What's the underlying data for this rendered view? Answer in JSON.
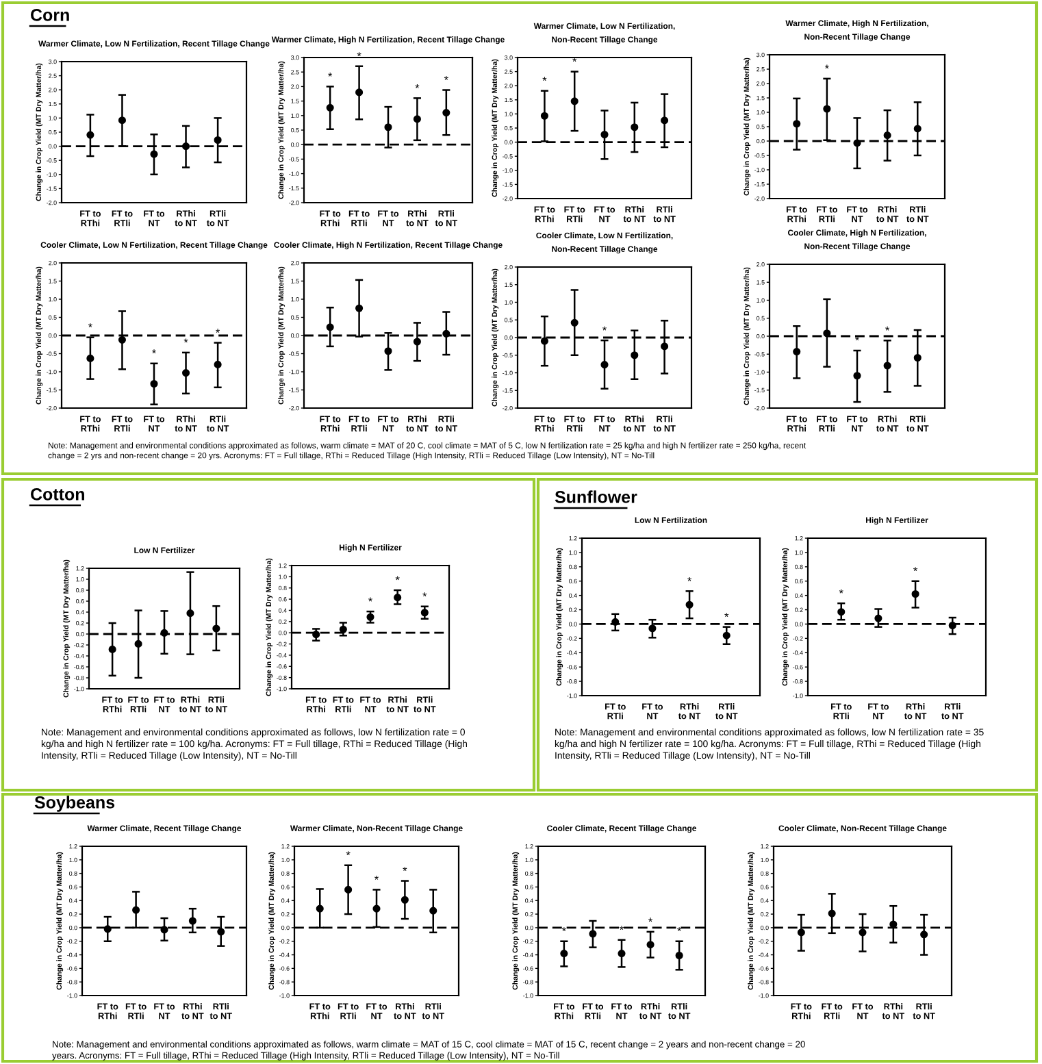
{
  "chart_data": [
    {
      "type": "scatter",
      "title": "Warmer Climate, Low N Fertilization, Recent Tillage Change",
      "ylabel": "Change in Crop Yield (MT Dry Matter/ha)",
      "categories": [
        "FT to\nRThi",
        "FT to\nRTli",
        "FT to\nNT",
        "RThi\nto NT",
        "RTli\nto NT"
      ],
      "ylim": [
        -2.0,
        3.0
      ],
      "yticks": [
        {
          "value": -2,
          "label": "-2.0"
        },
        {
          "value": -1.5,
          "label": "-1.5"
        },
        {
          "value": -1,
          "label": "-1.0"
        },
        {
          "value": -0.5,
          "label": "-0.5"
        },
        {
          "value": 0,
          "label": "0.0"
        },
        {
          "value": 0.5,
          "label": "0.5"
        },
        {
          "value": 1,
          "label": "1.0"
        },
        {
          "value": 1.5,
          "label": "1.5"
        },
        {
          "value": 2,
          "label": "2.0"
        },
        {
          "value": 2.5,
          "label": "2.5"
        },
        {
          "value": 3,
          "label": "3.0"
        }
      ],
      "marker": "circle",
      "grid": false,
      "ref_lines": [
        {
          "axis": "y",
          "value": 0,
          "line_style": "dashed"
        }
      ],
      "series": [
        {
          "color": "#000000",
          "values": [
            0.4,
            0.92,
            -0.28,
            0.0,
            0.22
          ],
          "errors": [
            [
              -0.35,
              1.12
            ],
            [
              0.0,
              1.82
            ],
            [
              -1.0,
              0.42
            ],
            [
              -0.75,
              0.72
            ],
            [
              -0.57,
              1.0
            ]
          ]
        }
      ],
      "annotations": [
        "Corn",
        "Note: Management and environmental conditions approximated as follows, warm climate = MAT of 20 C, cool climate = MAT of 5 C, low N fertilization rate = 25 kg/ha and high N fertilizer rate = 250 kg/ha, recent\nchange = 2 yrs and non-recent change = 20 yrs. Acronyms: FT = Full tillage, RThi = Reduced Tillage (High Intensity, RTli = Reduced Tillage (Low Intensity), NT = No-Till"
      ]
    },
    {
      "type": "scatter",
      "title": "Warmer Climate, High N Fertilization, Recent Tillage Change",
      "ylabel": "Change in Crop Yield (MT Dry Matter/ha)",
      "categories": [
        "FT to\nRThi",
        "FT to\nRTli",
        "FT to\nNT",
        "RThi\nto NT",
        "RTli\nto NT"
      ],
      "ylim": [
        -2.0,
        3.0
      ],
      "yticks": [
        {
          "value": -2,
          "label": "-2.0"
        },
        {
          "value": -1.5,
          "label": "-1.5"
        },
        {
          "value": -1,
          "label": "-1.0"
        },
        {
          "value": -0.5,
          "label": "-0.5"
        },
        {
          "value": 0,
          "label": "0.0"
        },
        {
          "value": 0.5,
          "label": "0.5"
        },
        {
          "value": 1,
          "label": "1.0"
        },
        {
          "value": 1.5,
          "label": "1.5"
        },
        {
          "value": 2,
          "label": "2.0"
        },
        {
          "value": 2.5,
          "label": "2.5"
        },
        {
          "value": 3,
          "label": "3.0"
        }
      ],
      "marker": "circle",
      "grid": false,
      "ref_lines": [
        {
          "axis": "y",
          "value": 0,
          "line_style": "dashed"
        }
      ],
      "series": [
        {
          "color": "#000000",
          "values": [
            1.27,
            1.8,
            0.6,
            0.88,
            1.1
          ],
          "errors": [
            [
              0.53,
              2.0
            ],
            [
              0.87,
              2.7
            ],
            [
              -0.1,
              1.3
            ],
            [
              0.15,
              1.6
            ],
            [
              0.33,
              1.88
            ]
          ]
        }
      ],
      "annotations": [
        {
          "text": "*",
          "x": "FT to\nRThi",
          "y": 2.0
        },
        {
          "text": "*",
          "x": "FT to\nRTli",
          "y": 2.7
        },
        {
          "text": "*",
          "x": "RThi\nto NT",
          "y": 1.6
        },
        {
          "text": "*",
          "x": "RTli\nto NT",
          "y": 1.88
        }
      ]
    },
    {
      "type": "scatter",
      "title": "Warmer Climate, Low N Fertilization,\nNon-Recent Tillage Change",
      "ylabel": "Change in Crop Yield (MT Dry Matter/ha)",
      "categories": [
        "FT to\nRThi",
        "FT to\nRTli",
        "FT to\nNT",
        "RThi\nto NT",
        "RTli\nto NT"
      ],
      "ylim": [
        -2.0,
        3.0
      ],
      "yticks": [
        {
          "value": -2,
          "label": "-2.0"
        },
        {
          "value": -1.5,
          "label": "-1.5"
        },
        {
          "value": -1,
          "label": "-1.0"
        },
        {
          "value": -0.5,
          "label": "-0.5"
        },
        {
          "value": 0,
          "label": "0.0"
        },
        {
          "value": 0.5,
          "label": "0.5"
        },
        {
          "value": 1,
          "label": "1.0"
        },
        {
          "value": 1.5,
          "label": "1.5"
        },
        {
          "value": 2,
          "label": "2.0"
        },
        {
          "value": 2.5,
          "label": "2.5"
        },
        {
          "value": 3,
          "label": "3.0"
        }
      ],
      "marker": "circle",
      "grid": false,
      "ref_lines": [
        {
          "axis": "y",
          "value": 0,
          "line_style": "dashed"
        }
      ],
      "series": [
        {
          "color": "#000000",
          "values": [
            0.93,
            1.45,
            0.27,
            0.53,
            0.77
          ],
          "errors": [
            [
              0.03,
              1.82
            ],
            [
              0.4,
              2.5
            ],
            [
              -0.6,
              1.12
            ],
            [
              -0.35,
              1.4
            ],
            [
              -0.18,
              1.7
            ]
          ]
        }
      ],
      "annotations": [
        {
          "text": "*",
          "x": "FT to\nRThi",
          "y": 1.82
        },
        {
          "text": "*",
          "x": "FT to\nRTli",
          "y": 2.5
        }
      ]
    },
    {
      "type": "scatter",
      "title": "Warmer Climate, High N Fertilization,\nNon-Recent Tillage Change",
      "ylabel": "Change in Crop Yield (MT Dry Matter/ha)",
      "categories": [
        "FT to\nRThi",
        "FT to\nRTli",
        "FT to\nNT",
        "RThi\nto NT",
        "RTli\nto NT"
      ],
      "ylim": [
        -2.0,
        3.0
      ],
      "yticks": [
        {
          "value": -2,
          "label": "-2.0"
        },
        {
          "value": -1.5,
          "label": "-1.5"
        },
        {
          "value": -1,
          "label": "-1.0"
        },
        {
          "value": -0.5,
          "label": "-0.5"
        },
        {
          "value": 0,
          "label": "0.0"
        },
        {
          "value": 0.5,
          "label": "0.5"
        },
        {
          "value": 1,
          "label": "1.0"
        },
        {
          "value": 1.5,
          "label": "1.5"
        },
        {
          "value": 2,
          "label": "2.0"
        },
        {
          "value": 2.5,
          "label": "2.5"
        },
        {
          "value": 3,
          "label": "3.0"
        }
      ],
      "marker": "circle",
      "grid": false,
      "ref_lines": [
        {
          "axis": "y",
          "value": 0,
          "line_style": "dashed"
        }
      ],
      "series": [
        {
          "color": "#000000",
          "values": [
            0.6,
            1.12,
            -0.07,
            0.2,
            0.43
          ],
          "errors": [
            [
              -0.3,
              1.48
            ],
            [
              0.03,
              2.17
            ],
            [
              -0.95,
              0.8
            ],
            [
              -0.68,
              1.07
            ],
            [
              -0.5,
              1.35
            ]
          ]
        }
      ],
      "annotations": [
        {
          "text": "*",
          "x": "FT to\nRTli",
          "y": 2.17
        }
      ]
    },
    {
      "type": "scatter",
      "title": "Cooler Climate, Low N Fertilization, Recent Tillage Change",
      "ylabel": "Change in Crop Yield (MT Dry Matter/ha)",
      "categories": [
        "FT to\nRThi",
        "FT to\nRTli",
        "FT to\nNT",
        "RThi\nto NT",
        "RTli\nto NT"
      ],
      "ylim": [
        -2.0,
        2.0
      ],
      "yticks": [
        {
          "value": -2,
          "label": "-2.0"
        },
        {
          "value": -1.5,
          "label": "-1.5"
        },
        {
          "value": -1,
          "label": "-1.0"
        },
        {
          "value": -0.5,
          "label": "-0.5"
        },
        {
          "value": 0,
          "label": "0.0"
        },
        {
          "value": 0.5,
          "label": "0.5"
        },
        {
          "value": 1,
          "label": "1.0"
        },
        {
          "value": 1.5,
          "label": "1.5"
        },
        {
          "value": 2,
          "label": "2.0"
        }
      ],
      "marker": "circle",
      "grid": false,
      "ref_lines": [
        {
          "axis": "y",
          "value": 0,
          "line_style": "dashed"
        }
      ],
      "series": [
        {
          "color": "#000000",
          "values": [
            -0.63,
            -0.12,
            -1.33,
            -1.03,
            -0.8
          ],
          "errors": [
            [
              -1.2,
              -0.05
            ],
            [
              -0.93,
              0.67
            ],
            [
              -1.9,
              -0.77
            ],
            [
              -1.6,
              -0.47
            ],
            [
              -1.43,
              -0.2
            ]
          ]
        }
      ],
      "annotations": [
        {
          "text": "*",
          "x": "FT to\nRThi",
          "y": -0.05
        },
        {
          "text": "*",
          "x": "FT to\nNT",
          "y": -0.77
        },
        {
          "text": "*",
          "x": "RThi\nto NT",
          "y": -0.47
        },
        {
          "text": "*",
          "x": "RTli\nto NT",
          "y": -0.2
        }
      ]
    },
    {
      "type": "scatter",
      "title": "Cooler Climate, High N Fertilization, Recent Tillage Change",
      "ylabel": "Change in Crop Yield (MT Dry Matter/ha)",
      "categories": [
        "FT to\nRThi",
        "FT to\nRTli",
        "FT to\nNT",
        "RThi\nto NT",
        "RTli\nto NT"
      ],
      "ylim": [
        -2.0,
        2.0
      ],
      "yticks": [
        {
          "value": -2,
          "label": "-2.0"
        },
        {
          "value": -1.5,
          "label": "-1.5"
        },
        {
          "value": -1,
          "label": "-1.0"
        },
        {
          "value": -0.5,
          "label": "-0.5"
        },
        {
          "value": 0,
          "label": "0.0"
        },
        {
          "value": 0.5,
          "label": "0.5"
        },
        {
          "value": 1,
          "label": "1.0"
        },
        {
          "value": 1.5,
          "label": "1.5"
        },
        {
          "value": 2,
          "label": "2.0"
        }
      ],
      "marker": "circle",
      "grid": false,
      "ref_lines": [
        {
          "axis": "y",
          "value": 0,
          "line_style": "dashed"
        }
      ],
      "series": [
        {
          "color": "#000000",
          "values": [
            0.23,
            0.75,
            -0.43,
            -0.17,
            0.05
          ],
          "errors": [
            [
              -0.3,
              0.77
            ],
            [
              -0.03,
              1.53
            ],
            [
              -0.95,
              0.07
            ],
            [
              -0.7,
              0.35
            ],
            [
              -0.53,
              0.65
            ]
          ]
        }
      ]
    },
    {
      "type": "scatter",
      "title": "Cooler Climate, Low N Fertilization,\nNon-Recent Tillage Change",
      "ylabel": "Change in Crop Yield (MT Dry Matter/ha)",
      "categories": [
        "FT to\nRThi",
        "FT to\nRTli",
        "FT to\nNT",
        "RThi\nto NT",
        "RTli\nto NT"
      ],
      "ylim": [
        -2.0,
        2.0
      ],
      "yticks": [
        {
          "value": -2,
          "label": "-2.0"
        },
        {
          "value": -1.5,
          "label": "-1.5"
        },
        {
          "value": -1,
          "label": "-1.0"
        },
        {
          "value": -0.5,
          "label": "-0.5"
        },
        {
          "value": 0,
          "label": "0.0"
        },
        {
          "value": 0.5,
          "label": "0.5"
        },
        {
          "value": 1,
          "label": "1.0"
        },
        {
          "value": 1.5,
          "label": "1.5"
        },
        {
          "value": 2,
          "label": "2.0"
        }
      ],
      "marker": "circle",
      "grid": false,
      "ref_lines": [
        {
          "axis": "y",
          "value": 0,
          "line_style": "dashed"
        }
      ],
      "series": [
        {
          "color": "#000000",
          "values": [
            -0.1,
            0.42,
            -0.77,
            -0.5,
            -0.25
          ],
          "errors": [
            [
              -0.8,
              0.6
            ],
            [
              -0.5,
              1.35
            ],
            [
              -1.45,
              -0.08
            ],
            [
              -1.18,
              0.2
            ],
            [
              -1.02,
              0.48
            ]
          ]
        }
      ],
      "annotations": [
        {
          "text": "*",
          "x": "FT to\nNT",
          "y": -0.08
        }
      ]
    },
    {
      "type": "scatter",
      "title": "Cooler Climate, High N Fertilization,\nNon-Recent Tillage Change",
      "ylabel": "Change in Crop Yield (MT Dry Matter/ha)",
      "categories": [
        "FT to\nRThi",
        "FT to\nRTli",
        "FT to\nNT",
        "RThi\nto NT",
        "RTli\nto NT"
      ],
      "ylim": [
        -2.0,
        2.0
      ],
      "yticks": [
        {
          "value": -2,
          "label": "-2.0"
        },
        {
          "value": -1.5,
          "label": "-1.5"
        },
        {
          "value": -1,
          "label": "-1.0"
        },
        {
          "value": -0.5,
          "label": "-0.5"
        },
        {
          "value": 0,
          "label": "0.0"
        },
        {
          "value": 0.5,
          "label": "0.5"
        },
        {
          "value": 1,
          "label": "1.0"
        },
        {
          "value": 1.5,
          "label": "1.5"
        },
        {
          "value": 2,
          "label": "2.0"
        }
      ],
      "marker": "circle",
      "grid": false,
      "ref_lines": [
        {
          "axis": "y",
          "value": 0,
          "line_style": "dashed"
        }
      ],
      "series": [
        {
          "color": "#000000",
          "values": [
            -0.43,
            0.08,
            -1.1,
            -0.82,
            -0.6
          ],
          "errors": [
            [
              -1.17,
              0.28
            ],
            [
              -0.85,
              1.03
            ],
            [
              -1.83,
              -0.4
            ],
            [
              -1.55,
              -0.12
            ],
            [
              -1.38,
              0.17
            ]
          ]
        }
      ],
      "annotations": [
        {
          "text": "*",
          "x": "FT to\nNT",
          "y": -0.4
        },
        {
          "text": "*",
          "x": "RThi\nto NT",
          "y": -0.12
        }
      ]
    },
    {
      "type": "scatter",
      "title": "Low N Fertilizer",
      "ylabel": "Change in Crop Yield (MT Dry Matter/ha)",
      "categories": [
        "FT to\nRThi",
        "FT to\nRTli",
        "FT to\nNT",
        "RThi\nto NT",
        "RTli\nto NT"
      ],
      "ylim": [
        -1.0,
        1.2
      ],
      "yticks": [
        {
          "value": -1,
          "label": "-1.0"
        },
        {
          "value": -0.8,
          "label": "-0.8"
        },
        {
          "value": -0.6,
          "label": "-0.6"
        },
        {
          "value": -0.4,
          "label": "-0.4"
        },
        {
          "value": -0.2,
          "label": "-0.2"
        },
        {
          "value": 0,
          "label": "0.0"
        },
        {
          "value": 0.2,
          "label": "0.2"
        },
        {
          "value": 0.4,
          "label": "0.4"
        },
        {
          "value": 0.6,
          "label": "0.6"
        },
        {
          "value": 0.8,
          "label": "0.8"
        },
        {
          "value": 1,
          "label": "1.0"
        },
        {
          "value": 1.2,
          "label": "1.2"
        }
      ],
      "marker": "circle",
      "grid": false,
      "ref_lines": [
        {
          "axis": "y",
          "value": 0,
          "line_style": "dashed"
        }
      ],
      "series": [
        {
          "color": "#000000",
          "values": [
            -0.28,
            -0.18,
            0.02,
            0.38,
            0.1
          ],
          "errors": [
            [
              -0.76,
              0.2
            ],
            [
              -0.8,
              0.43
            ],
            [
              -0.36,
              0.42
            ],
            [
              -0.37,
              1.13
            ],
            [
              -0.3,
              0.51
            ]
          ]
        }
      ],
      "annotations": [
        "Cotton",
        "Note: Management and environmental conditions approximated as follows, low N fertilization rate = 0\nkg/ha and high N fertilizer rate = 100 kg/ha. Acronyms: FT = Full tillage, RThi = Reduced Tillage (High\nIntensity, RTli = Reduced Tillage (Low Intensity), NT = No-Till"
      ]
    },
    {
      "type": "scatter",
      "title": "High N Fertilizer",
      "ylabel": "Change in Crop Yield (MT Dry Matter/ha)",
      "categories": [
        "FT to\nRThi",
        "FT to\nRTli",
        "FT to\nNT",
        "RThi\nto NT",
        "RTli\nto NT"
      ],
      "ylim": [
        -1.0,
        1.2
      ],
      "yticks": [
        {
          "value": -1,
          "label": "-1.0"
        },
        {
          "value": -0.8,
          "label": "-0.8"
        },
        {
          "value": -0.6,
          "label": "-0.6"
        },
        {
          "value": -0.4,
          "label": "-0.4"
        },
        {
          "value": -0.2,
          "label": "-0.2"
        },
        {
          "value": 0,
          "label": "0.0"
        },
        {
          "value": 0.2,
          "label": "0.2"
        },
        {
          "value": 0.4,
          "label": "0.4"
        },
        {
          "value": 0.6,
          "label": "0.6"
        },
        {
          "value": 0.8,
          "label": "0.8"
        },
        {
          "value": 1,
          "label": "1.0"
        },
        {
          "value": 1.2,
          "label": "1.2"
        }
      ],
      "marker": "circle",
      "grid": false,
      "ref_lines": [
        {
          "axis": "y",
          "value": 0,
          "line_style": "dashed"
        }
      ],
      "series": [
        {
          "color": "#000000",
          "values": [
            -0.03,
            0.06,
            0.28,
            0.63,
            0.36
          ],
          "errors": [
            [
              -0.14,
              0.07
            ],
            [
              -0.05,
              0.18
            ],
            [
              0.18,
              0.38
            ],
            [
              0.51,
              0.76
            ],
            [
              0.25,
              0.47
            ]
          ]
        }
      ],
      "annotations": [
        {
          "text": "*",
          "x": "FT to\nNT",
          "y": 0.38
        },
        {
          "text": "*",
          "x": "RThi\nto NT",
          "y": 0.76
        },
        {
          "text": "*",
          "x": "RTli\nto NT",
          "y": 0.47
        }
      ]
    },
    {
      "type": "scatter",
      "title": "Low N Fertilization",
      "ylabel": "Change in Crop Yield (MT Dry Matter/ha)",
      "categories": [
        "FT to\nRTli",
        "FT to\nNT",
        "RThi\nto NT",
        "RTli\nto NT"
      ],
      "ylim": [
        -1.0,
        1.2
      ],
      "yticks": [
        {
          "value": -1,
          "label": "-1.0"
        },
        {
          "value": -0.8,
          "label": "-0.8"
        },
        {
          "value": -0.6,
          "label": "-0.6"
        },
        {
          "value": -0.4,
          "label": "-0.4"
        },
        {
          "value": -0.2,
          "label": "-0.2"
        },
        {
          "value": 0,
          "label": "0.0"
        },
        {
          "value": 0.2,
          "label": "0.2"
        },
        {
          "value": 0.4,
          "label": "0.4"
        },
        {
          "value": 0.6,
          "label": "0.6"
        },
        {
          "value": 0.8,
          "label": "0.8"
        },
        {
          "value": 1,
          "label": "1.0"
        },
        {
          "value": 1.2,
          "label": "1.2"
        }
      ],
      "marker": "circle",
      "grid": false,
      "ref_lines": [
        {
          "axis": "y",
          "value": 0,
          "line_style": "dashed"
        }
      ],
      "series": [
        {
          "color": "#000000",
          "values": [
            0.03,
            -0.06,
            0.27,
            -0.16
          ],
          "errors": [
            [
              -0.09,
              0.14
            ],
            [
              -0.19,
              0.06
            ],
            [
              0.08,
              0.46
            ],
            [
              -0.28,
              -0.04
            ]
          ]
        }
      ],
      "annotations": [
        "Sunflower",
        "Note: Management and environmental conditions approximated as follows, low N fertilization rate = 35\nkg/ha and high N fertilizer rate = 100 kg/ha. Acronyms: FT = Full tillage, RThi = Reduced Tillage (High\nIntensity, RTli = Reduced Tillage (Low Intensity), NT = No-Till",
        {
          "text": "*",
          "x": "RThi\nto NT",
          "y": 0.46
        },
        {
          "text": "*",
          "x": "RTli\nto NT",
          "y": -0.04
        }
      ]
    },
    {
      "type": "scatter",
      "title": "High N Fertilizer",
      "ylabel": "Change in Crop Yield (MT Dry Matter/ha)",
      "categories": [
        "FT to\nRTli",
        "FT to\nNT",
        "RThi\nto NT",
        "RTli\nto NT"
      ],
      "ylim": [
        -1.0,
        1.2
      ],
      "yticks": [
        {
          "value": -1,
          "label": "-1.0"
        },
        {
          "value": -0.8,
          "label": "-0.8"
        },
        {
          "value": -0.6,
          "label": "-0.6"
        },
        {
          "value": -0.4,
          "label": "-0.4"
        },
        {
          "value": -0.2,
          "label": "-0.2"
        },
        {
          "value": 0,
          "label": "0.0"
        },
        {
          "value": 0.2,
          "label": "0.2"
        },
        {
          "value": 0.4,
          "label": "0.4"
        },
        {
          "value": 0.6,
          "label": "0.6"
        },
        {
          "value": 0.8,
          "label": "0.8"
        },
        {
          "value": 1,
          "label": "1.0"
        },
        {
          "value": 1.2,
          "label": "1.2"
        }
      ],
      "marker": "circle",
      "grid": false,
      "ref_lines": [
        {
          "axis": "y",
          "value": 0,
          "line_style": "dashed"
        }
      ],
      "series": [
        {
          "color": "#000000",
          "values": [
            0.17,
            0.08,
            0.42,
            -0.02
          ],
          "errors": [
            [
              0.06,
              0.29
            ],
            [
              -0.04,
              0.21
            ],
            [
              0.23,
              0.6
            ],
            [
              -0.14,
              0.09
            ]
          ]
        }
      ],
      "annotations": [
        {
          "text": "*",
          "x": "FT to\nRTli",
          "y": 0.29
        },
        {
          "text": "*",
          "x": "RThi\nto NT",
          "y": 0.6
        }
      ]
    },
    {
      "type": "scatter",
      "title": "Warmer Climate, Recent Tillage Change",
      "ylabel": "Change in Crop Yield (MT Dry Matter/ha)",
      "categories": [
        "FT to\nRThi",
        "FT to\nRTli",
        "FT to\nNT",
        "RThi\nto NT",
        "RTli\nto NT"
      ],
      "ylim": [
        -1.0,
        1.2
      ],
      "yticks": [
        {
          "value": -1,
          "label": "-1.0"
        },
        {
          "value": -0.8,
          "label": "-0.8"
        },
        {
          "value": -0.6,
          "label": "-0.6"
        },
        {
          "value": -0.4,
          "label": "-0.4"
        },
        {
          "value": -0.2,
          "label": "-0.2"
        },
        {
          "value": 0,
          "label": "0.0"
        },
        {
          "value": 0.2,
          "label": "0.2"
        },
        {
          "value": 0.4,
          "label": "0.4"
        },
        {
          "value": 0.6,
          "label": "0.6"
        },
        {
          "value": 0.8,
          "label": "0.8"
        },
        {
          "value": 1,
          "label": "1.0"
        },
        {
          "value": 1.2,
          "label": "1.2"
        }
      ],
      "marker": "circle",
      "grid": false,
      "ref_lines": [
        {
          "axis": "y",
          "value": 0,
          "line_style": "dashed"
        }
      ],
      "series": [
        {
          "color": "#000000",
          "values": [
            -0.02,
            0.26,
            -0.03,
            0.1,
            -0.06
          ],
          "errors": [
            [
              -0.2,
              0.16
            ],
            [
              0.0,
              0.53
            ],
            [
              -0.19,
              0.14
            ],
            [
              -0.07,
              0.28
            ],
            [
              -0.27,
              0.16
            ]
          ]
        }
      ],
      "annotations": [
        "Soybeans",
        "Note: Management and environmental conditions approximated as follows, warm climate = MAT of 15 C, cool climate = MAT of 15 C, recent change = 2 years and non-recent change = 20\nyears. Acronyms: FT = Full tillage, RThi = Reduced Tillage (High Intensity, RTli = Reduced Tillage (Low Intensity), NT = No-Till"
      ]
    },
    {
      "type": "scatter",
      "title": "Warmer Climate, Non-Recent Tillage Change",
      "ylabel": "Change in Crop Yield (MT Dry Matter/ha)",
      "categories": [
        "FT to\nRThi",
        "FT to\nRTli",
        "FT to\nNT",
        "RThi\nto NT",
        "RTli\nto NT"
      ],
      "ylim": [
        -1.0,
        1.2
      ],
      "yticks": [
        {
          "value": -1,
          "label": "-1.0"
        },
        {
          "value": -0.8,
          "label": "-0.8"
        },
        {
          "value": -0.6,
          "label": "-0.6"
        },
        {
          "value": -0.4,
          "label": "-0.4"
        },
        {
          "value": -0.2,
          "label": "-0.2"
        },
        {
          "value": 0,
          "label": "0.0"
        },
        {
          "value": 0.2,
          "label": "0.2"
        },
        {
          "value": 0.4,
          "label": "0.4"
        },
        {
          "value": 0.6,
          "label": "0.6"
        },
        {
          "value": 0.8,
          "label": "0.8"
        },
        {
          "value": 1,
          "label": "1.0"
        },
        {
          "value": 1.2,
          "label": "1.2"
        }
      ],
      "marker": "circle",
      "grid": false,
      "ref_lines": [
        {
          "axis": "y",
          "value": 0,
          "line_style": "dashed"
        }
      ],
      "series": [
        {
          "color": "#000000",
          "values": [
            0.28,
            0.56,
            0.28,
            0.41,
            0.25
          ],
          "errors": [
            [
              0.0,
              0.57
            ],
            [
              0.2,
              0.92
            ],
            [
              0.01,
              0.56
            ],
            [
              0.13,
              0.69
            ],
            [
              -0.07,
              0.56
            ]
          ]
        }
      ],
      "annotations": [
        {
          "text": "*",
          "x": "FT to\nRTli",
          "y": 0.92
        },
        {
          "text": "*",
          "x": "FT to\nNT",
          "y": 0.56
        },
        {
          "text": "*",
          "x": "RThi\nto NT",
          "y": 0.69
        }
      ]
    },
    {
      "type": "scatter",
      "title": "Cooler Climate, Recent Tillage Change",
      "ylabel": "Change in Crop Yield (MT Dry Matter/ha)",
      "categories": [
        "FT to\nRThi",
        "FT to\nRTli",
        "FT to\nNT",
        "RThi\nto NT",
        "RTli\nto NT"
      ],
      "ylim": [
        -1.0,
        1.2
      ],
      "yticks": [
        {
          "value": -1,
          "label": "-1.0"
        },
        {
          "value": -0.8,
          "label": "-0.8"
        },
        {
          "value": -0.6,
          "label": "-0.6"
        },
        {
          "value": -0.4,
          "label": "-0.4"
        },
        {
          "value": -0.2,
          "label": "-0.2"
        },
        {
          "value": 0,
          "label": "0.0"
        },
        {
          "value": 0.2,
          "label": "0.2"
        },
        {
          "value": 0.4,
          "label": "0.4"
        },
        {
          "value": 0.6,
          "label": "0.6"
        },
        {
          "value": 0.8,
          "label": "0.8"
        },
        {
          "value": 1,
          "label": "1.0"
        },
        {
          "value": 1.2,
          "label": "1.2"
        }
      ],
      "marker": "circle",
      "grid": false,
      "ref_lines": [
        {
          "axis": "y",
          "value": 0,
          "line_style": "dashed"
        }
      ],
      "series": [
        {
          "color": "#000000",
          "values": [
            -0.38,
            -0.09,
            -0.38,
            -0.25,
            -0.41
          ],
          "errors": [
            [
              -0.57,
              -0.2
            ],
            [
              -0.29,
              0.1
            ],
            [
              -0.58,
              -0.18
            ],
            [
              -0.44,
              -0.06
            ],
            [
              -0.62,
              -0.2
            ]
          ]
        }
      ],
      "annotations": [
        {
          "text": "*",
          "x": "FT to\nRThi",
          "y": -0.2
        },
        {
          "text": "*",
          "x": "FT to\nNT",
          "y": -0.18
        },
        {
          "text": "*",
          "x": "RThi\nto NT",
          "y": -0.06
        },
        {
          "text": "*",
          "x": "RTli\nto NT",
          "y": -0.2
        }
      ]
    },
    {
      "type": "scatter",
      "title": "Cooler Climate, Non-Recent Tillage Change",
      "ylabel": "Change in Crop Yield (MT Dry Matter/ha)",
      "categories": [
        "FT to\nRThi",
        "FT to\nRTli",
        "FT to\nNT",
        "RThi\nto NT",
        "RTli\nto NT"
      ],
      "ylim": [
        -1.0,
        1.2
      ],
      "yticks": [
        {
          "value": -1,
          "label": "-1.0"
        },
        {
          "value": -0.8,
          "label": "-0.8"
        },
        {
          "value": -0.6,
          "label": "-0.6"
        },
        {
          "value": -0.4,
          "label": "-0.4"
        },
        {
          "value": -0.2,
          "label": "-0.2"
        },
        {
          "value": 0,
          "label": "0.0"
        },
        {
          "value": 0.2,
          "label": "0.2"
        },
        {
          "value": 0.4,
          "label": "0.4"
        },
        {
          "value": 0.6,
          "label": "0.6"
        },
        {
          "value": 0.8,
          "label": "0.8"
        },
        {
          "value": 1,
          "label": "1.0"
        },
        {
          "value": 1.2,
          "label": "1.2"
        }
      ],
      "marker": "circle",
      "grid": false,
      "ref_lines": [
        {
          "axis": "y",
          "value": 0,
          "line_style": "dashed"
        }
      ],
      "series": [
        {
          "color": "#000000",
          "values": [
            -0.07,
            0.21,
            -0.07,
            0.05,
            -0.1
          ],
          "errors": [
            [
              -0.34,
              0.19
            ],
            [
              -0.08,
              0.5
            ],
            [
              -0.35,
              0.2
            ],
            [
              -0.22,
              0.32
            ],
            [
              -0.4,
              0.19
            ]
          ]
        }
      ]
    }
  ]
}
